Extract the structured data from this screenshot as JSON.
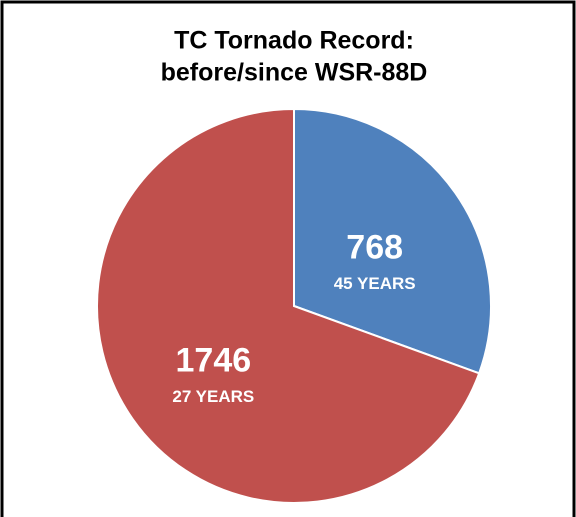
{
  "chart_data": {
    "type": "pie",
    "title": [
      "TC Tornado Record:",
      "before/since WSR-88D"
    ],
    "categories": [
      "45 YEARS",
      "27 YEARS"
    ],
    "values": [
      768,
      1746
    ],
    "colors": [
      "#4f81bd",
      "#c0504d"
    ]
  }
}
